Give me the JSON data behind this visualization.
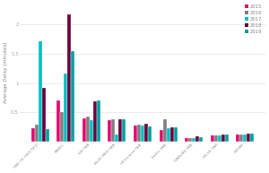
{
  "categories": [
    "FAB CE (SES RP2)",
    "FABEC",
    "SW FAB",
    "BLUE MED FAB",
    "UK-Ireland FAB",
    "Baltic FAB",
    "DANUBE FAB",
    "DK-SE FAB",
    "NEFAB"
  ],
  "years": [
    "2015",
    "2016",
    "2017",
    "2018",
    "2019"
  ],
  "colors": [
    "#e8006e",
    "#7f7f7f",
    "#00bfc4",
    "#6b003a",
    "#00a0a0"
  ],
  "values": {
    "FAB CE (SES RP2)": [
      0.22,
      0.28,
      1.72,
      0.92,
      0.21
    ],
    "FABEC": [
      0.7,
      0.5,
      1.16,
      2.18,
      1.55
    ],
    "SW FAB": [
      0.4,
      0.43,
      0.36,
      0.68,
      0.7
    ],
    "BLUE MED FAB": [
      0.37,
      0.38,
      0.12,
      0.38,
      0.38
    ],
    "UK-Ireland FAB": [
      0.27,
      0.28,
      0.27,
      0.3,
      0.26
    ],
    "Baltic FAB": [
      0.2,
      0.38,
      0.22,
      0.24,
      0.24
    ],
    "DANUBE FAB": [
      0.05,
      0.05,
      0.05,
      0.09,
      0.08
    ],
    "DK-SE FAB": [
      0.1,
      0.1,
      0.1,
      0.12,
      0.12
    ],
    "NEFAB": [
      0.12,
      0.12,
      0.12,
      0.14,
      0.13
    ]
  },
  "ylabel": "Average Delay (minutes)",
  "ylim": [
    0,
    2.35
  ],
  "yticks": [
    0,
    0.5,
    1.0,
    1.5,
    2.0
  ],
  "background_color": "#ffffff",
  "bar_width": 0.14,
  "figsize": [
    3.0,
    1.93
  ],
  "dpi": 100
}
